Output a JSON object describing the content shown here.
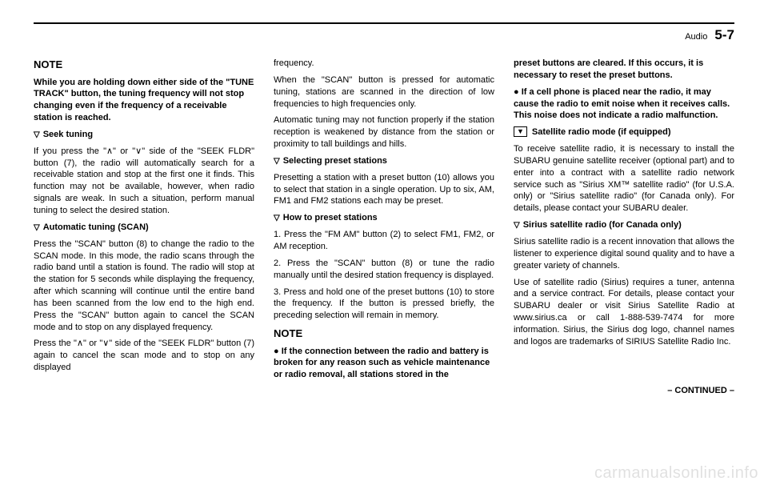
{
  "header": {
    "section": "Audio",
    "pagenum": "5-7"
  },
  "watermark": "carmanualsonline.info",
  "continued": "– CONTINUED –",
  "col": {
    "noteHead1": "NOTE",
    "noteBody1": "While you are holding down either side of the \"TUNE TRACK\" button, the tuning frequency will not stop changing even if the frequency of a receivable station is reached.",
    "seekHead": "Seek tuning",
    "seekBody": "If you press the \"∧\" or \"∨\" side of the \"SEEK FLDR\" button (7), the radio will automatically search for a receivable station and stop at the first one it finds. This function may not be available, however, when radio signals are weak. In such a situation, perform manual tuning to select the desired station.",
    "autoHead": "Automatic tuning (SCAN)",
    "autoBody1": "Press the \"SCAN\" button (8) to change the radio to the SCAN mode. In this mode, the radio scans through the radio band until a station is found. The radio will stop at the station for 5 seconds while displaying the frequency, after which scanning will continue until the entire band has been scanned from the low end to the high end. Press the \"SCAN\" button again to cancel the SCAN mode and to stop on any displayed frequency.",
    "autoBody2a": "Press the \"∧\" or \"∨\" side of the \"SEEK FLDR\" button (7) again to cancel the scan mode and to stop on any displayed",
    "autoBody2b": "frequency.",
    "autoBody3": "When the \"SCAN\" button is pressed for automatic tuning, stations are scanned in the direction of low frequencies to high frequencies only.",
    "autoBody4": "Automatic tuning may not function properly if the station reception is weakened by distance from the station or proximity to tall buildings and hills.",
    "selPresetHead": "Selecting preset stations",
    "selPresetBody": "Presetting a station with a preset button (10) allows you to select that station in a single operation. Up to six, AM, FM1 and FM2 stations each may be preset.",
    "howPresetHead": "How to preset stations",
    "howPreset1": "1.  Press the \"FM AM\" button (2) to select FM1, FM2, or AM reception.",
    "howPreset2": "2.  Press the \"SCAN\" button (8) or tune the radio manually until the desired station frequency is displayed.",
    "howPreset3": "3.  Press and hold one of the preset buttons (10) to store the frequency. If the button is pressed briefly, the preceding selection will remain in memory.",
    "noteHead2": "NOTE",
    "noteBullet1a": "If the connection between the radio and battery is broken for any reason such as vehicle maintenance or radio removal, all stations stored in the",
    "noteBullet1b": "preset buttons are cleared. If this occurs, it is necessary to reset the preset buttons.",
    "noteBullet2": "If a cell phone is placed near the radio, it may cause the radio to emit noise when it receives calls. This noise does not indicate a radio malfunction.",
    "satHead": "Satellite radio mode (if equipped)",
    "satBody": "To receive satellite radio, it is necessary to install the SUBARU genuine satellite receiver (optional part) and to enter into a contract with a satellite radio network service such as \"Sirius XM™ satellite radio\" (for U.S.A. only) or \"Sirius satellite radio\" (for Canada only). For details, please contact your SUBARU dealer.",
    "siriusHead": "Sirius satellite radio (for Canada only)",
    "siriusBody1": "Sirius satellite radio is a recent innovation that allows the listener to experience digital sound quality and to have a greater variety of channels.",
    "siriusBody2": "Use of satellite radio (Sirius) requires a tuner, antenna and a service contract. For details, please contact your SUBARU dealer or visit Sirius Satellite Radio at www.sirius.ca or call 1-888-539-7474 for more information. Sirius, the Sirius dog logo, channel names and logos are trademarks of SIRIUS Satellite Radio Inc."
  }
}
